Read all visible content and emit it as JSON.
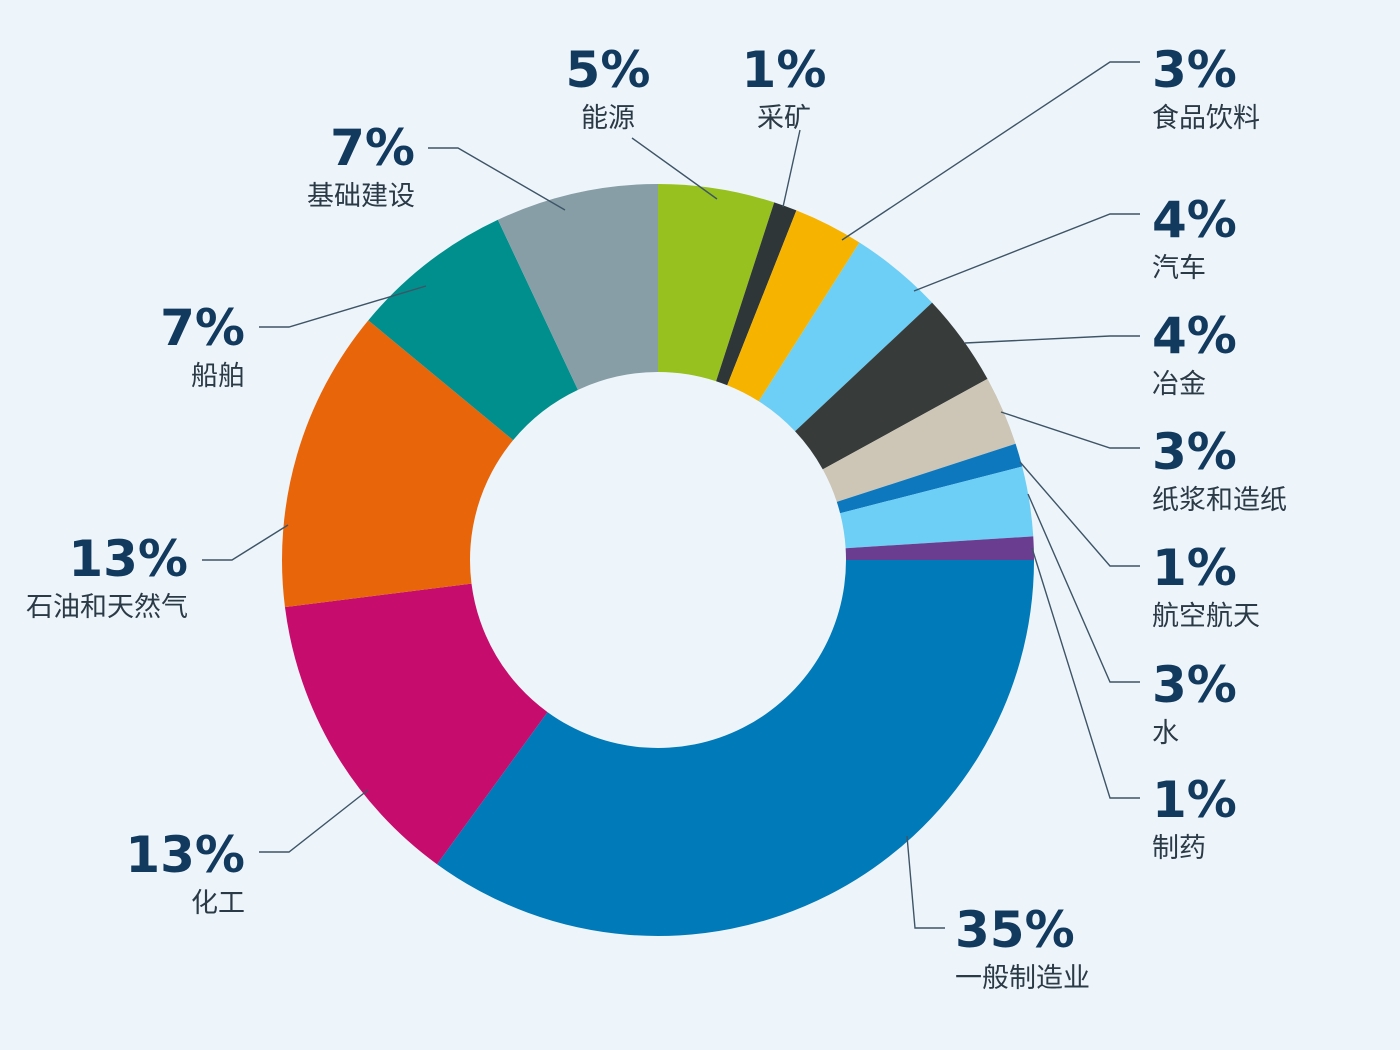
{
  "chart_data": {
    "type": "pie",
    "donut": true,
    "title": "",
    "unit": "%",
    "slices": [
      {
        "label": "能源",
        "pct_text": "5%",
        "value": 5,
        "color": "#97c11f"
      },
      {
        "label": "采矿",
        "pct_text": "1%",
        "value": 1,
        "color": "#2f3637"
      },
      {
        "label": "食品饮料",
        "pct_text": "3%",
        "value": 3,
        "color": "#f6b400"
      },
      {
        "label": "汽车",
        "pct_text": "4%",
        "value": 4,
        "color": "#6dcff6"
      },
      {
        "label": "冶金",
        "pct_text": "4%",
        "value": 4,
        "color": "#373c3b"
      },
      {
        "label": "纸浆和造纸",
        "pct_text": "3%",
        "value": 3,
        "color": "#cdc6b7"
      },
      {
        "label": "航空航天",
        "pct_text": "1%",
        "value": 1,
        "color": "#0e78bf"
      },
      {
        "label": "水",
        "pct_text": "3%",
        "value": 3,
        "color": "#6dcff6"
      },
      {
        "label": "制药",
        "pct_text": "1%",
        "value": 1,
        "color": "#6a3d91"
      },
      {
        "label": "一般制造业",
        "pct_text": "35%",
        "value": 35,
        "color": "#007ab8"
      },
      {
        "label": "化工",
        "pct_text": "13%",
        "value": 13,
        "color": "#c60c6c"
      },
      {
        "label": "石油和天然气",
        "pct_text": "13%",
        "value": 13,
        "color": "#e8650a"
      },
      {
        "label": "船舶",
        "pct_text": "7%",
        "value": 7,
        "color": "#008f8c"
      },
      {
        "label": "基础建设",
        "pct_text": "7%",
        "value": 7,
        "color": "#879ea7"
      }
    ]
  }
}
